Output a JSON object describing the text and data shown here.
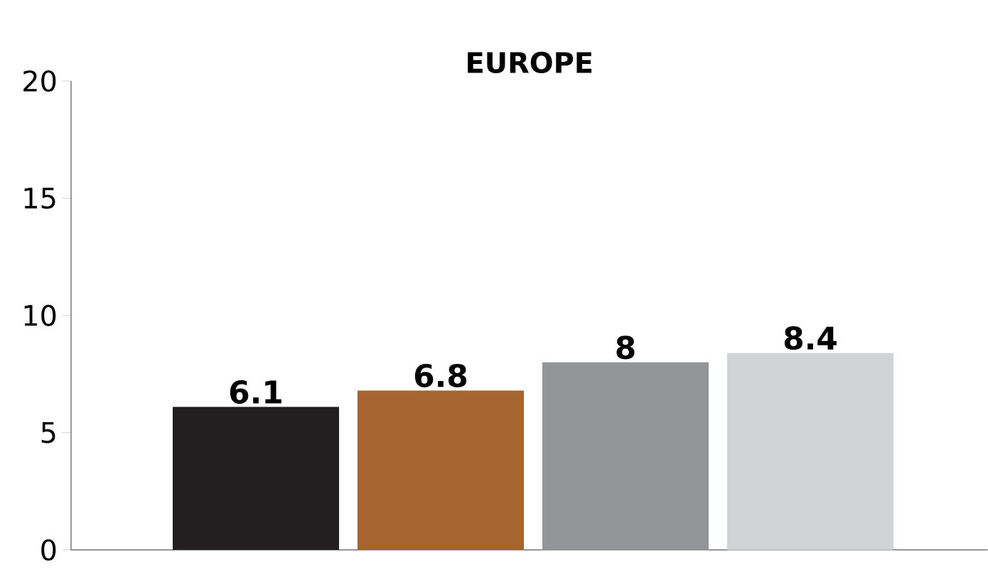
{
  "chart_data": {
    "type": "bar",
    "title": "EUROPE",
    "categories": [
      null,
      null,
      null,
      null
    ],
    "values": [
      6.1,
      6.8,
      8,
      8.4
    ],
    "colors": [
      "#231f20",
      "#a6652f",
      "#939598",
      "#d1d3d4"
    ],
    "ylim": [
      0,
      20
    ],
    "yticks": [
      0,
      5,
      10,
      15,
      20
    ],
    "data_labels": true
  }
}
